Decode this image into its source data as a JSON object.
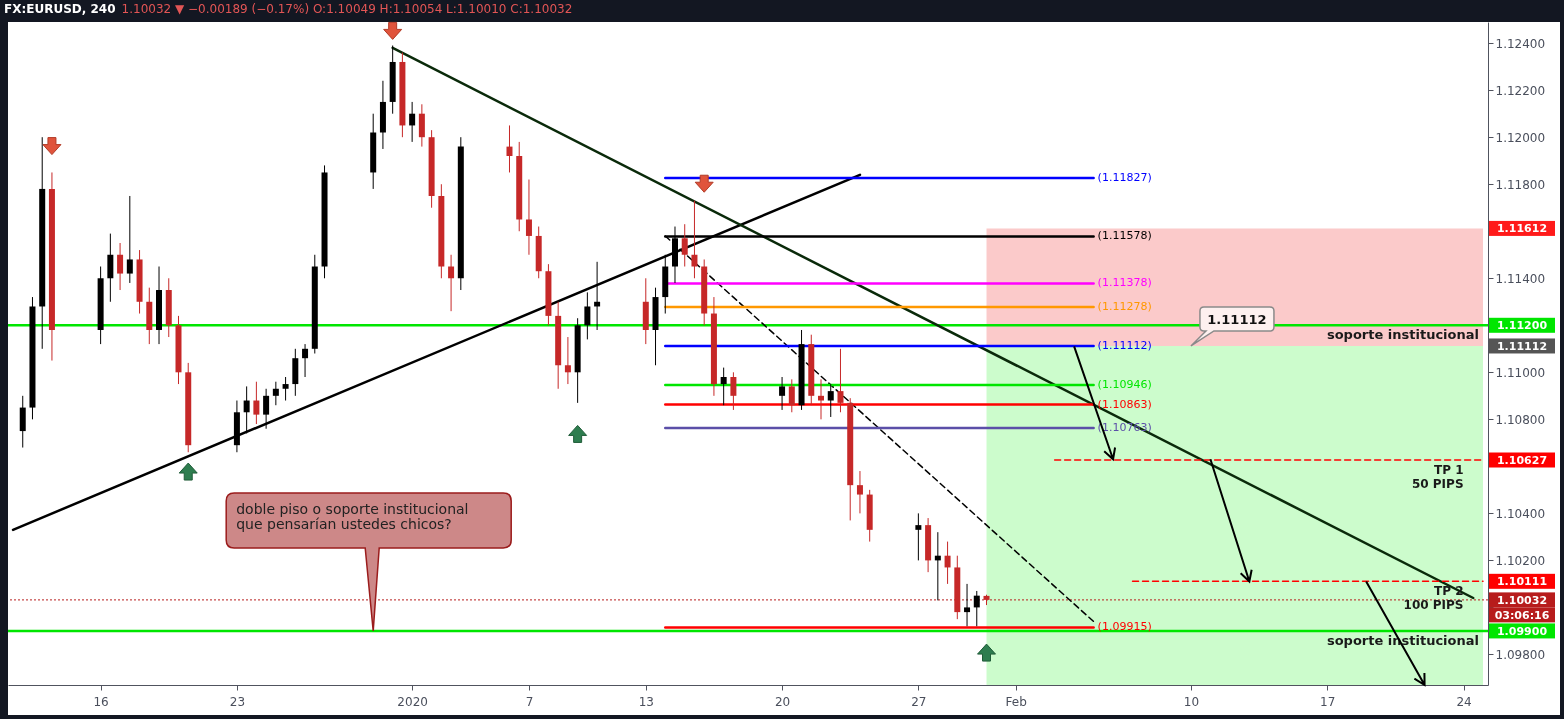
{
  "chart_data": {
    "type": "candlestick",
    "title": "FX:EURUSD, 240",
    "subtitle": "1.10032 ▼ −0.00189 (−0.17%) O:1.10049 H:1.10054 L:1.10010 C:1.10032",
    "x": [
      "2019-12-12T00:00",
      "2019-12-12T12:00",
      "2019-12-13T00:00",
      "2019-12-13T12:00",
      "2019-12-16T00:00",
      "2019-12-16T12:00",
      "2019-12-17T00:00",
      "2019-12-17T12:00",
      "2019-12-18T00:00",
      "2019-12-18T12:00",
      "2019-12-19T00:00",
      "2019-12-19T12:00",
      "2019-12-20T00:00",
      "2019-12-20T12:00",
      "2019-12-23T00:00",
      "2019-12-23T12:00",
      "2019-12-24T00:00",
      "2019-12-24T12:00",
      "2019-12-25T00:00",
      "2019-12-25T12:00",
      "2019-12-26T00:00",
      "2019-12-26T12:00",
      "2019-12-27T00:00",
      "2019-12-27T12:00",
      "2019-12-30T00:00",
      "2019-12-30T12:00",
      "2019-12-31T00:00",
      "2019-12-31T12:00",
      "2020-01-01T00:00",
      "2020-01-01T12:00",
      "2020-01-02T00:00",
      "2020-01-02T12:00",
      "2020-01-03T00:00",
      "2020-01-03T12:00",
      "2020-01-06T00:00",
      "2020-01-06T12:00",
      "2020-01-07T00:00",
      "2020-01-07T12:00",
      "2020-01-08T00:00",
      "2020-01-08T12:00",
      "2020-01-09T00:00",
      "2020-01-09T12:00",
      "2020-01-10T00:00",
      "2020-01-10T12:00",
      "2020-01-13T00:00",
      "2020-01-13T12:00",
      "2020-01-14T00:00",
      "2020-01-14T12:00",
      "2020-01-15T00:00",
      "2020-01-15T12:00",
      "2020-01-16T00:00",
      "2020-01-16T12:00",
      "2020-01-17T00:00",
      "2020-01-17T12:00",
      "2020-01-20T00:00",
      "2020-01-20T12:00",
      "2020-01-21T00:00",
      "2020-01-21T12:00",
      "2020-01-22T00:00",
      "2020-01-22T12:00",
      "2020-01-23T00:00",
      "2020-01-23T12:00",
      "2020-01-24T00:00",
      "2020-01-24T12:00",
      "2020-01-27T00:00",
      "2020-01-27T12:00",
      "2020-01-28T00:00",
      "2020-01-28T12:00",
      "2020-01-29T00:00",
      "2020-01-29T12:00",
      "2020-01-30T00:00",
      "2020-01-30T12:00"
    ],
    "ohlc": [
      [
        1.1075,
        1.109,
        1.1068,
        1.1085
      ],
      [
        1.1085,
        1.1132,
        1.108,
        1.1128
      ],
      [
        1.1128,
        1.12,
        1.111,
        1.1178
      ],
      [
        1.1178,
        1.1185,
        1.1105,
        1.1118
      ],
      [
        1.1118,
        1.1145,
        1.1112,
        1.114
      ],
      [
        1.114,
        1.1159,
        1.113,
        1.115
      ],
      [
        1.115,
        1.1155,
        1.1135,
        1.1142
      ],
      [
        1.1142,
        1.1175,
        1.1138,
        1.1148
      ],
      [
        1.1148,
        1.1152,
        1.1125,
        1.113
      ],
      [
        1.113,
        1.1136,
        1.1112,
        1.1118
      ],
      [
        1.1118,
        1.1145,
        1.1112,
        1.1135
      ],
      [
        1.1135,
        1.114,
        1.1115,
        1.112
      ],
      [
        1.112,
        1.1124,
        1.1095,
        1.11
      ],
      [
        1.11,
        1.1104,
        1.1066,
        1.1069
      ],
      [
        1.1069,
        1.1088,
        1.1066,
        1.1083
      ],
      [
        1.1083,
        1.1094,
        1.1074,
        1.1088
      ],
      [
        1.1088,
        1.1096,
        1.1078,
        1.1082
      ],
      [
        1.1082,
        1.1093,
        1.1076,
        1.109
      ],
      [
        1.109,
        1.1096,
        1.1086,
        1.1093
      ],
      [
        1.1093,
        1.1098,
        1.1088,
        1.1095
      ],
      [
        1.1095,
        1.111,
        1.109,
        1.1106
      ],
      [
        1.1106,
        1.1112,
        1.1098,
        1.111
      ],
      [
        1.111,
        1.115,
        1.1108,
        1.1145
      ],
      [
        1.1145,
        1.1188,
        1.114,
        1.1185
      ],
      [
        1.1185,
        1.121,
        1.1178,
        1.1202
      ],
      [
        1.1202,
        1.1224,
        1.1195,
        1.1215
      ],
      [
        1.1215,
        1.1239,
        1.121,
        1.1232
      ],
      [
        1.1232,
        1.1236,
        1.12,
        1.1205
      ],
      [
        1.1205,
        1.1215,
        1.1198,
        1.121
      ],
      [
        1.121,
        1.1214,
        1.1196,
        1.12
      ],
      [
        1.12,
        1.1203,
        1.117,
        1.1175
      ],
      [
        1.1175,
        1.118,
        1.114,
        1.1145
      ],
      [
        1.1145,
        1.115,
        1.1126,
        1.114
      ],
      [
        1.114,
        1.12,
        1.1135,
        1.1196
      ],
      [
        1.1196,
        1.1205,
        1.1185,
        1.1192
      ],
      [
        1.1192,
        1.1198,
        1.116,
        1.1165
      ],
      [
        1.1165,
        1.1182,
        1.115,
        1.1158
      ],
      [
        1.1158,
        1.1162,
        1.114,
        1.1143
      ],
      [
        1.1143,
        1.1146,
        1.112,
        1.1124
      ],
      [
        1.1124,
        1.113,
        1.1093,
        1.1103
      ],
      [
        1.1103,
        1.1115,
        1.1095,
        1.11
      ],
      [
        1.11,
        1.1123,
        1.1087,
        1.112
      ],
      [
        1.112,
        1.1134,
        1.1114,
        1.1128
      ],
      [
        1.1128,
        1.1147,
        1.1118,
        1.113
      ],
      [
        1.113,
        1.114,
        1.1112,
        1.1118
      ],
      [
        1.1118,
        1.1136,
        1.1103,
        1.1132
      ],
      [
        1.1132,
        1.115,
        1.1125,
        1.1145
      ],
      [
        1.1145,
        1.1162,
        1.1138,
        1.1157
      ],
      [
        1.1157,
        1.1163,
        1.1145,
        1.115
      ],
      [
        1.115,
        1.1173,
        1.114,
        1.1145
      ],
      [
        1.1145,
        1.1148,
        1.112,
        1.1125
      ],
      [
        1.1125,
        1.1132,
        1.109,
        1.1095
      ],
      [
        1.1095,
        1.1102,
        1.1086,
        1.1098
      ],
      [
        1.1098,
        1.11,
        1.1084,
        1.109
      ],
      [
        1.109,
        1.1098,
        1.1084,
        1.1094
      ],
      [
        1.1094,
        1.1097,
        1.1083,
        1.1086
      ],
      [
        1.1086,
        1.1118,
        1.1084,
        1.1112
      ],
      [
        1.1112,
        1.1116,
        1.1086,
        1.109
      ],
      [
        1.109,
        1.1097,
        1.108,
        1.1088
      ],
      [
        1.1088,
        1.1095,
        1.1081,
        1.1092
      ],
      [
        1.1092,
        1.111,
        1.1083,
        1.1087
      ],
      [
        1.1087,
        1.1089,
        1.1037,
        1.1052
      ],
      [
        1.1052,
        1.1058,
        1.104,
        1.1048
      ],
      [
        1.1048,
        1.105,
        1.1028,
        1.1033
      ],
      [
        1.1033,
        1.104,
        1.102,
        1.1035
      ],
      [
        1.1035,
        1.1038,
        1.1015,
        1.102
      ],
      [
        1.102,
        1.1032,
        1.1003,
        1.1022
      ],
      [
        1.1022,
        1.1028,
        1.101,
        1.1017
      ],
      [
        1.1017,
        1.1022,
        1.0995,
        1.0998
      ],
      [
        1.0998,
        1.101,
        1.0992,
        1.1
      ],
      [
        1.1,
        1.1007,
        1.0992,
        1.1005
      ],
      [
        1.10049,
        1.10054,
        1.1001,
        1.10032
      ]
    ],
    "colors": [
      "#000000",
      "#000000",
      "#000000",
      "#c62828",
      "#000000",
      "#000000",
      "#c62828",
      "#000000",
      "#c62828",
      "#c62828",
      "#000000",
      "#c62828",
      "#c62828",
      "#c62828",
      "#000000",
      "#000000",
      "#c62828",
      "#000000",
      "#000000",
      "#000000",
      "#000000",
      "#000000",
      "#000000",
      "#000000",
      "#000000",
      "#000000",
      "#000000",
      "#c62828",
      "#000000",
      "#c62828",
      "#c62828",
      "#c62828",
      "#c62828",
      "#000000",
      "#c62828",
      "#c62828",
      "#c62828",
      "#c62828",
      "#c62828",
      "#c62828",
      "#c62828",
      "#000000",
      "#000000",
      "#000000",
      "#c62828",
      "#000000",
      "#000000",
      "#000000",
      "#c62828",
      "#c62828",
      "#c62828",
      "#c62828",
      "#000000",
      "#c62828",
      "#000000",
      "#c62828",
      "#000000",
      "#c62828",
      "#c62828",
      "#000000",
      "#c62828",
      "#c62828",
      "#c62828",
      "#c62828",
      "#000000",
      "#c62828",
      "#000000",
      "#c62828",
      "#c62828",
      "#000000",
      "#000000",
      "#c62828"
    ],
    "xlim": [
      "2019-12-11T12:00",
      "2020-02-25T00:00"
    ],
    "xticks": [
      {
        "value": "2019-12-16",
        "label": "16"
      },
      {
        "value": "2019-12-23",
        "label": "23"
      },
      {
        "value": "2020-01-01",
        "label": "2020"
      },
      {
        "value": "2020-01-07",
        "label": "7"
      },
      {
        "value": "2020-01-13",
        "label": "13"
      },
      {
        "value": "2020-01-20",
        "label": "20"
      },
      {
        "value": "2020-01-27",
        "label": "27"
      },
      {
        "value": "2020-02-01",
        "label": "Feb"
      },
      {
        "value": "2020-02-10",
        "label": "10"
      },
      {
        "value": "2020-02-17",
        "label": "17"
      },
      {
        "value": "2020-02-24",
        "label": "24"
      }
    ],
    "ylim": [
      1.0967,
      1.1249
    ],
    "yticks": [
      {
        "value": 1.098,
        "label": "1.09800"
      },
      {
        "value": 1.1,
        "label": null
      },
      {
        "value": 1.102,
        "label": "1.10200"
      },
      {
        "value": 1.104,
        "label": "1.10400"
      },
      {
        "value": 1.106,
        "label": null
      },
      {
        "value": 1.108,
        "label": "1.10800"
      },
      {
        "value": 1.11,
        "label": "1.11000"
      },
      {
        "value": 1.112,
        "label": null
      },
      {
        "value": 1.114,
        "label": "1.11400"
      },
      {
        "value": 1.116,
        "label": null
      },
      {
        "value": 1.118,
        "label": "1.11800"
      },
      {
        "value": 1.12,
        "label": "1.12000"
      },
      {
        "value": 1.122,
        "label": "1.12200"
      },
      {
        "value": 1.124,
        "label": "1.12400"
      }
    ],
    "bands": [
      {
        "axis": "y",
        "from": 1.11112,
        "to": 1.11612,
        "color": "#fbcaca"
      },
      {
        "axis": "y",
        "from": 1.0967,
        "to": 1.11112,
        "color": "#ccfccc"
      }
    ],
    "ref_lines": [
      {
        "axis": "y",
        "value": 1.112,
        "label": "soporte institucional",
        "color": "#00e600"
      },
      {
        "axis": "y",
        "value": 1.099,
        "label": "soporte institucional",
        "color": "#00e600"
      },
      {
        "axis": "y",
        "value": 1.10032,
        "color": "#b71c1c",
        "line_style": "dotted"
      }
    ],
    "series": [
      {
        "type": "line",
        "color": "#000000",
        "x": [
          "2019-12-11T12:00",
          "2020-01-24T00:00"
        ],
        "values": [
          1.1033,
          1.1184
        ]
      },
      {
        "type": "line",
        "color": "#0a2a0a",
        "x": [
          "2019-12-31T00:00",
          "2020-02-24T12:00"
        ],
        "values": [
          1.1238,
          1.1004
        ]
      },
      {
        "type": "line",
        "color": "#000000",
        "line_style": "dashed",
        "x": [
          "2020-01-14T00:00",
          "2020-02-05T00:00"
        ],
        "values": [
          1.1158,
          1.0994
        ]
      },
      {
        "type": "line",
        "color": "#0000ff",
        "x": [
          "2020-01-14T00:00",
          "2020-02-05T00:00"
        ],
        "values": [
          1.11827,
          1.11827
        ]
      },
      {
        "type": "line",
        "color": "#000000",
        "x": [
          "2020-01-14T00:00",
          "2020-02-05T00:00"
        ],
        "values": [
          1.11578,
          1.11578
        ]
      },
      {
        "type": "line",
        "color": "#ff00ff",
        "x": [
          "2020-01-14T00:00",
          "2020-02-05T00:00"
        ],
        "values": [
          1.11378,
          1.11378
        ]
      },
      {
        "type": "line",
        "color": "#ff9800",
        "x": [
          "2020-01-14T00:00",
          "2020-02-05T00:00"
        ],
        "values": [
          1.11278,
          1.11278
        ]
      },
      {
        "type": "line",
        "color": "#0000ff",
        "x": [
          "2020-01-14T00:00",
          "2020-02-05T00:00"
        ],
        "values": [
          1.11112,
          1.11112
        ]
      },
      {
        "type": "line",
        "color": "#00e600",
        "x": [
          "2020-01-14T00:00",
          "2020-02-05T00:00"
        ],
        "values": [
          1.10946,
          1.10946
        ]
      },
      {
        "type": "line",
        "color": "#ff0000",
        "x": [
          "2020-01-14T00:00",
          "2020-02-05T00:00"
        ],
        "values": [
          1.10863,
          1.10863
        ]
      },
      {
        "type": "line",
        "color": "#5b4fa8",
        "x": [
          "2020-01-14T00:00",
          "2020-02-05T00:00"
        ],
        "values": [
          1.10763,
          1.10763
        ]
      },
      {
        "type": "line",
        "color": "#ff0000",
        "x": [
          "2020-01-14T00:00",
          "2020-02-05T00:00"
        ],
        "values": [
          1.09915,
          1.09915
        ]
      },
      {
        "type": "line",
        "color": "#ff0000",
        "line_style": "dashed",
        "x": [
          "2020-02-03T00:00",
          "2020-02-25T00:00"
        ],
        "values": [
          1.10627,
          1.10627
        ]
      },
      {
        "type": "line",
        "color": "#ff0000",
        "line_style": "dashed",
        "x": [
          "2020-02-07T00:00",
          "2020-02-25T00:00"
        ],
        "values": [
          1.10111,
          1.10111
        ]
      }
    ],
    "annotations": [
      "doble piso o soporte institucional\nque pensarían ustedes chicos?",
      {
        "text": "1.11112",
        "x": "2020-02-10T00:00",
        "y": 1.11112
      },
      {
        "text": "(1.11827)",
        "x": "2020-02-05T00:00",
        "y": 1.11827
      },
      {
        "text": "(1.11578)",
        "x": "2020-02-05T00:00",
        "y": 1.11578
      },
      {
        "text": "(1.11378)",
        "x": "2020-02-05T00:00",
        "y": 1.11378
      },
      {
        "text": "(1.11278)",
        "x": "2020-02-05T00:00",
        "y": 1.11278
      },
      {
        "text": "(1.11112)",
        "x": "2020-02-05T00:00",
        "y": 1.11112
      },
      {
        "text": "(1.10946)",
        "x": "2020-02-05T00:00",
        "y": 1.10946
      },
      {
        "text": "(1.10863)",
        "x": "2020-02-05T00:00",
        "y": 1.10863
      },
      {
        "text": "(1.10763)",
        "x": "2020-02-05T00:00",
        "y": 1.10763
      },
      {
        "text": "(1.09915)",
        "x": "2020-02-05T00:00",
        "y": 1.09915
      },
      {
        "text": "TP 1\n50 PIPS",
        "x": "2020-02-24T00:00",
        "y": 1.10627
      },
      {
        "text": "TP 2\n100 PIPS",
        "x": "2020-02-24T00:00",
        "y": 1.10111
      },
      {
        "text": "1.11612",
        "x": "2020-02-25T00:00",
        "y": 1.11612
      },
      {
        "text": "1.11200",
        "x": "2020-02-25T00:00",
        "y": 1.112
      },
      {
        "text": "1.11112",
        "x": "2020-02-25T00:00",
        "y": 1.11112
      },
      {
        "text": "1.10627",
        "x": "2020-02-25T00:00",
        "y": 1.10627
      },
      {
        "text": "1.10111",
        "x": "2020-02-25T00:00",
        "y": 1.10111
      },
      {
        "text": "1.10032",
        "x": "2020-02-25T00:00",
        "y": 1.10032
      },
      "03:06:16",
      {
        "text": "1.09900",
        "x": "2020-02-25T00:00",
        "y": 1.099
      }
    ]
  }
}
